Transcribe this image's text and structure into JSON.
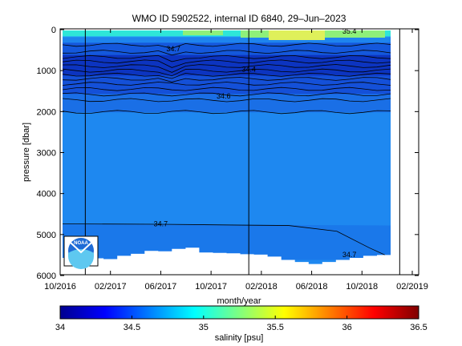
{
  "chart_data": {
    "type": "heatmap",
    "title": "WMO ID 5902522, internal ID 6840, 29–Jun–2023",
    "xlabel": "month/year",
    "ylabel": "pressure [dbar]",
    "x_ticks": [
      "10/2016",
      "02/2017",
      "06/2017",
      "10/2017",
      "02/2018",
      "06/2018",
      "10/2018",
      "02/2019"
    ],
    "y_ticks": [
      "0",
      "1000",
      "2000",
      "3000",
      "4000",
      "5000",
      "6000"
    ],
    "ylim": [
      6000,
      0
    ],
    "y_inverted": true,
    "colorbar": {
      "label": "salinity [psu]",
      "ticks": [
        "34",
        "34.5",
        "35",
        "35.5",
        "36",
        "36.5"
      ],
      "range": [
        34,
        36.5
      ],
      "colormap": "jet"
    },
    "contour_labels": [
      {
        "text": "34.7",
        "x": "2017-07",
        "y": 450
      },
      {
        "text": "34.4",
        "x": "2018-01",
        "y": 950
      },
      {
        "text": "34.6",
        "x": "2017-11",
        "y": 1600
      },
      {
        "text": "34.7",
        "x": "2017-06",
        "y": 4720
      },
      {
        "text": "34.7",
        "x": "2018-09",
        "y": 5470
      },
      {
        "text": "35.4",
        "x": "2018-09",
        "y": 20
      }
    ],
    "profile_markers": [
      "2016-12",
      "2018-01",
      "2019-01"
    ],
    "bottom_depths": [
      5550,
      5600,
      5560,
      5580,
      5500,
      5450,
      5380,
      5390,
      5330,
      5300,
      5420,
      5430,
      5440,
      5460,
      5470,
      5520,
      5600,
      5650,
      5700,
      5650,
      5600,
      5550,
      5500,
      5480
    ],
    "fill_colors": {
      "deep": "#1e88f0",
      "mid": "#1a6fe6",
      "intermediate": "#1450d8",
      "upper": "#0a3cc8",
      "surface_warm": "#8ef07a",
      "surface_cyan": "#2ee6d8",
      "surface_yellow": "#dff05a"
    },
    "logo_text": "NOAA"
  }
}
